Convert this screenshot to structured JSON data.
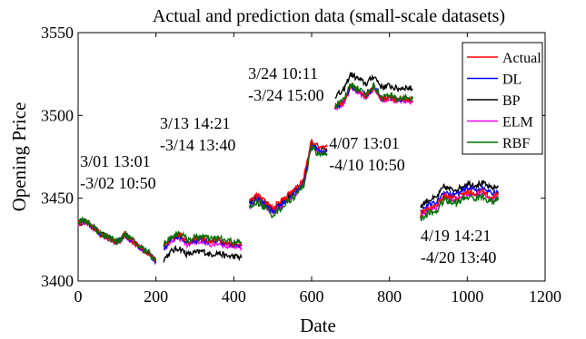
{
  "chart_data": {
    "type": "line",
    "title": "Actual and prediction data (small-scale datasets)",
    "xlabel": "Date",
    "ylabel": "Opening Price",
    "xlim": [
      0,
      1200
    ],
    "ylim": [
      3400,
      3550
    ],
    "xticks": [
      "0",
      "200",
      "400",
      "600",
      "800",
      "1000",
      "1200"
    ],
    "yticks": [
      "3400",
      "3450",
      "3500",
      "3550"
    ],
    "grid": false,
    "legend_position": "top-right",
    "series": [
      {
        "name": "Actual",
        "color": "#ff0000",
        "offset": 0,
        "noise": 1.2
      },
      {
        "name": "DL",
        "color": "#0000ff",
        "offset": 0,
        "noise": 1.0
      },
      {
        "name": "BP",
        "color": "#000000",
        "offset": 0,
        "noise": 1.2
      },
      {
        "name": "ELM",
        "color": "#ff00ff",
        "offset": 0,
        "noise": 1.0
      },
      {
        "name": "RBF",
        "color": "#007000",
        "offset": 0,
        "noise": 1.4
      }
    ],
    "segments": [
      {
        "x_range": [
          0,
          200
        ],
        "actual": [
          [
            0,
            3435
          ],
          [
            20,
            3436
          ],
          [
            40,
            3432
          ],
          [
            60,
            3428
          ],
          [
            80,
            3426
          ],
          [
            100,
            3423
          ],
          [
            120,
            3428
          ],
          [
            140,
            3424
          ],
          [
            160,
            3420
          ],
          [
            180,
            3417
          ],
          [
            200,
            3412
          ]
        ],
        "bp_offset": 0,
        "dl_offset": 0,
        "elm_offset": -0.5,
        "rbf_offset": 0.5
      },
      {
        "x_range": [
          220,
          420
        ],
        "actual": [
          [
            220,
            3421
          ],
          [
            240,
            3426
          ],
          [
            260,
            3428
          ],
          [
            280,
            3424
          ],
          [
            300,
            3425
          ],
          [
            320,
            3426
          ],
          [
            340,
            3424
          ],
          [
            360,
            3425
          ],
          [
            380,
            3423
          ],
          [
            400,
            3423
          ],
          [
            420,
            3422
          ]
        ],
        "bp_offset": -8,
        "dl_offset": -1,
        "elm_offset": -2,
        "rbf_offset": 1
      },
      {
        "x_range": [
          440,
          640
        ],
        "actual": [
          [
            440,
            3448
          ],
          [
            460,
            3452
          ],
          [
            480,
            3448
          ],
          [
            500,
            3444
          ],
          [
            520,
            3448
          ],
          [
            540,
            3452
          ],
          [
            560,
            3456
          ],
          [
            580,
            3462
          ],
          [
            600,
            3485
          ],
          [
            620,
            3480
          ],
          [
            640,
            3481
          ]
        ],
        "bp_offset": -1,
        "dl_offset": -2,
        "elm_offset": -3,
        "rbf_offset": -4
      },
      {
        "x_range": [
          660,
          860
        ],
        "actual": [
          [
            660,
            3505
          ],
          [
            680,
            3507
          ],
          [
            700,
            3518
          ],
          [
            720,
            3515
          ],
          [
            740,
            3512
          ],
          [
            760,
            3517
          ],
          [
            780,
            3510
          ],
          [
            800,
            3511
          ],
          [
            820,
            3509
          ],
          [
            840,
            3510
          ],
          [
            860,
            3509
          ]
        ],
        "bp_offset": 7,
        "dl_offset": 0,
        "elm_offset": -1,
        "rbf_offset": 1
      },
      {
        "x_range": [
          880,
          1080
        ],
        "actual": [
          [
            880,
            3440
          ],
          [
            900,
            3444
          ],
          [
            920,
            3445
          ],
          [
            940,
            3452
          ],
          [
            960,
            3450
          ],
          [
            980,
            3451
          ],
          [
            1000,
            3454
          ],
          [
            1020,
            3453
          ],
          [
            1040,
            3454
          ],
          [
            1060,
            3451
          ],
          [
            1080,
            3452
          ]
        ],
        "bp_offset": 5,
        "dl_offset": 2,
        "elm_offset": -1,
        "rbf_offset": -3
      }
    ],
    "annotations": [
      {
        "line1": "3/01 13:01",
        "line2": "-3/02 10:50",
        "x": 5,
        "y": 3469
      },
      {
        "line1": "3/13 14:21",
        "line2": "-3/14 13:40",
        "x": 210,
        "y": 3492
      },
      {
        "line1": "3/24 10:11",
        "line2": "-3/24 15:00",
        "x": 437,
        "y": 3522
      },
      {
        "line1": "4/07 13:01",
        "line2": "-4/10 10:50",
        "x": 645,
        "y": 3480
      },
      {
        "line1": "4/19 14:21",
        "line2": "-4/20 13:40",
        "x": 880,
        "y": 3424
      }
    ]
  }
}
